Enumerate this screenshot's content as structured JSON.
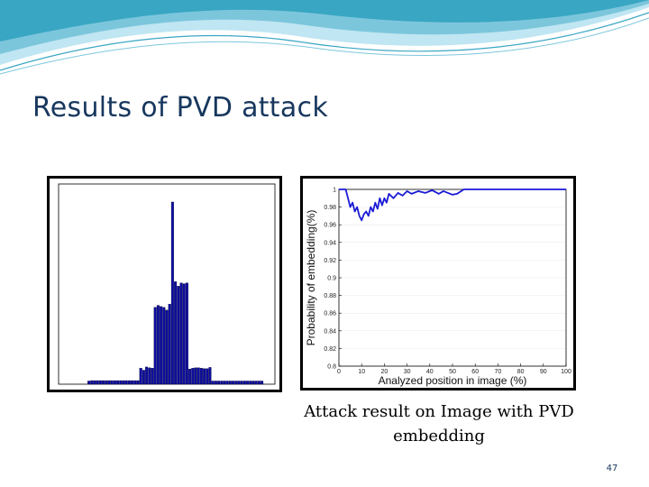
{
  "slide": {
    "title": "Results of PVD attack",
    "caption": "Attack result on Image with PVD embedding",
    "page_number": "47"
  },
  "colors": {
    "title": "#17375e",
    "wave_light": "#bfe6f2",
    "wave_mid": "#7cc6dc",
    "wave_dark": "#39a6c3",
    "bar_fill": "#0d0d9e",
    "line": "#1a1ad6"
  },
  "chart_data": [
    {
      "type": "bar",
      "title": "",
      "xlabel": "",
      "ylabel": "",
      "ylim": [
        0,
        5000
      ],
      "values": [
        0,
        0,
        0,
        0,
        0,
        0,
        0,
        0,
        0,
        0,
        80,
        90,
        90,
        90,
        90,
        90,
        90,
        90,
        90,
        90,
        90,
        90,
        90,
        90,
        90,
        90,
        90,
        90,
        400,
        350,
        430,
        410,
        400,
        1920,
        1970,
        1940,
        1920,
        1850,
        2000,
        4550,
        2560,
        2450,
        2530,
        2510,
        2530,
        380,
        400,
        410,
        410,
        400,
        390,
        390,
        420,
        80,
        80,
        80,
        80,
        80,
        80,
        80,
        80,
        80,
        80,
        80,
        80,
        80,
        80,
        80,
        80,
        80,
        80,
        0,
        0,
        0,
        0
      ]
    },
    {
      "type": "line",
      "title": "",
      "xlabel": "Analyzed position in image (%)",
      "ylabel": "Probability of embedding(%)",
      "xlim": [
        0,
        100
      ],
      "ylim": [
        0.8,
        1.0
      ],
      "x_ticks": [
        0,
        10,
        20,
        30,
        40,
        50,
        60,
        70,
        80,
        90,
        100
      ],
      "y_ticks": [
        0.8,
        0.82,
        0.84,
        0.86,
        0.88,
        0.9,
        0.92,
        0.94,
        0.96,
        0.98,
        1
      ],
      "x": [
        0,
        3,
        4,
        5,
        6,
        7,
        8,
        9,
        10,
        11,
        12,
        13,
        14,
        15,
        16,
        17,
        18,
        19,
        20,
        21,
        22,
        24,
        26,
        28,
        30,
        32,
        35,
        38,
        41,
        44,
        46,
        48,
        50,
        52,
        55,
        60,
        70,
        80,
        90,
        100
      ],
      "y": [
        1.0,
        1.0,
        0.99,
        0.98,
        0.985,
        0.975,
        0.98,
        0.97,
        0.965,
        0.972,
        0.975,
        0.97,
        0.98,
        0.975,
        0.985,
        0.978,
        0.99,
        0.982,
        0.99,
        0.985,
        0.995,
        0.99,
        0.996,
        0.993,
        0.998,
        0.995,
        0.998,
        0.996,
        0.999,
        0.995,
        0.998,
        0.996,
        0.994,
        0.995,
        1.0,
        1.0,
        1.0,
        1.0,
        1.0,
        1.0
      ]
    }
  ]
}
